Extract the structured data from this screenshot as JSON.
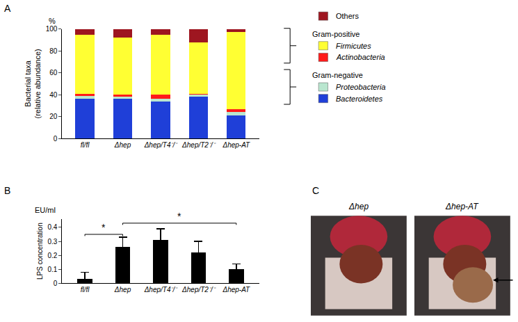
{
  "chart_data": [
    {
      "type": "bar",
      "title": "A",
      "stacked": true,
      "grid": false,
      "ylabel": [
        "Bacterial taxa",
        "(relative abundance)"
      ],
      "yunit": "%",
      "categories": [
        "fl/fl",
        "Δhep",
        "Δhep/T4⁻/⁻",
        "Δhep/T2⁻/⁻",
        "Δhep-AT"
      ],
      "series": [
        {
          "name": "Bacteroidetes",
          "color": "#1f3fd8",
          "values": [
            36,
            36,
            34,
            38,
            21
          ]
        },
        {
          "name": "Proteobacteria",
          "color": "#b9e6cf",
          "values": [
            3,
            2,
            2,
            2,
            3
          ]
        },
        {
          "name": "Actinobacteria",
          "color": "#ff1a1a",
          "values": [
            2,
            2,
            4,
            1,
            3
          ]
        },
        {
          "name": "Firmicutes",
          "color": "#ffff33",
          "values": [
            54,
            52,
            55,
            47,
            70
          ]
        },
        {
          "name": "Others",
          "color": "#9e1620",
          "values": [
            5,
            8,
            5,
            12,
            3
          ]
        }
      ],
      "groups": [
        {
          "label": "Gram-positive",
          "members": [
            "Firmicutes",
            "Actinobacteria"
          ]
        },
        {
          "label": "Gram-negative",
          "members": [
            "Proteobacteria",
            "Bacteroidetes"
          ]
        }
      ],
      "ylim": [
        0,
        100
      ],
      "yticks": [
        0,
        20,
        40,
        60,
        80,
        100
      ]
    },
    {
      "type": "bar",
      "title": "B",
      "grid": false,
      "ylabel": [
        "LPS concentration"
      ],
      "yunit": "EU/ml",
      "categories": [
        "fl/fl",
        "Δhep",
        "Δhep/T4⁻/⁻",
        "Δhep/T2⁻/⁻",
        "Δhep-AT"
      ],
      "values": [
        0.03,
        0.26,
        0.31,
        0.22,
        0.1
      ],
      "errors": [
        0.05,
        0.07,
        0.08,
        0.08,
        0.04
      ],
      "color": "#000000",
      "significance": [
        {
          "from": 0,
          "to": 1,
          "label": "*"
        },
        {
          "from": 1,
          "to": 4,
          "label": "*"
        }
      ],
      "ylim": [
        0,
        0.46
      ],
      "yticks": [
        0,
        0.1,
        0.2,
        0.3,
        0.4
      ]
    }
  ],
  "panel_c": {
    "title": "C",
    "images": [
      {
        "label": "Δhep",
        "arrow": false
      },
      {
        "label": "Δhep-AT",
        "arrow": true
      }
    ]
  }
}
